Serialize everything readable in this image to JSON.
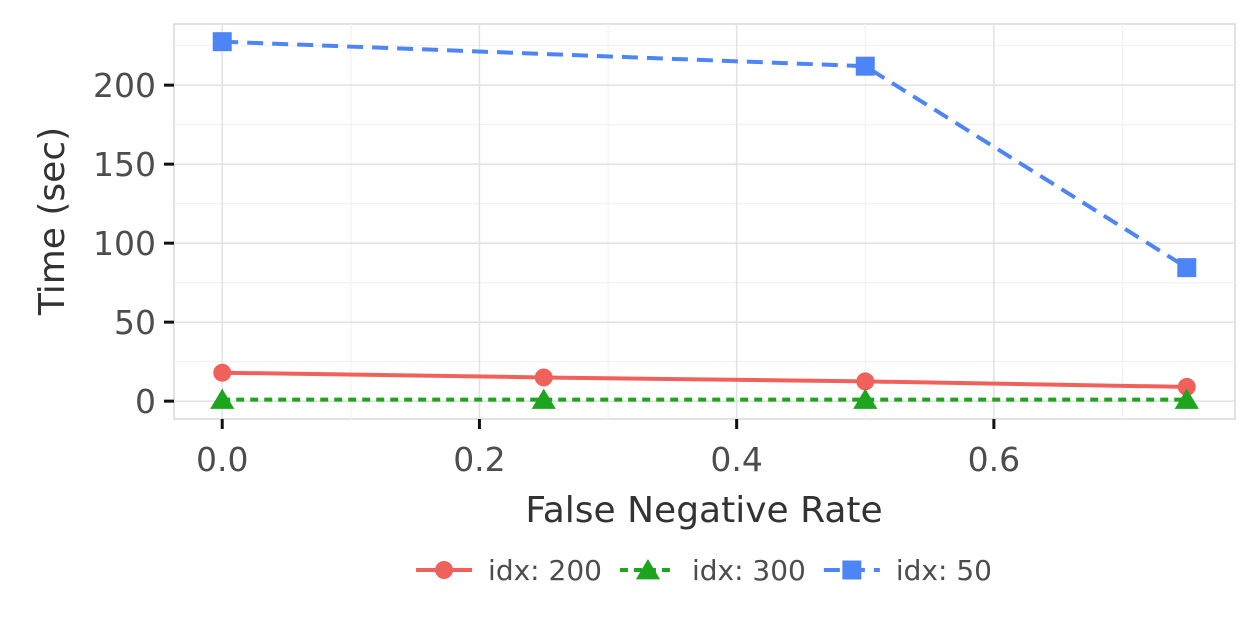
{
  "chart_data": {
    "type": "line",
    "title": "",
    "xlabel": "False Negative Rate",
    "ylabel": "Time (sec)",
    "xlim": [
      -0.0375,
      0.7875
    ],
    "ylim": [
      -11.3,
      238.7
    ],
    "x_ticks": [
      0.0,
      0.2,
      0.4,
      0.6
    ],
    "x_tick_labels": [
      "0.0",
      "0.2",
      "0.4",
      "0.6"
    ],
    "y_ticks": [
      0,
      50,
      100,
      150,
      200
    ],
    "y_tick_labels": [
      "0",
      "50",
      "100",
      "150",
      "200"
    ],
    "grid": true,
    "legend_position": "bottom",
    "series": [
      {
        "name": "idx: 200",
        "x": [
          0.0,
          0.25,
          0.5,
          0.75
        ],
        "values": [
          18,
          15,
          12.5,
          9
        ],
        "color": "#F0615B",
        "marker": "circle",
        "dash": "solid"
      },
      {
        "name": "idx: 300",
        "x": [
          0.0,
          0.25,
          0.5,
          0.75
        ],
        "values": [
          1,
          1,
          1,
          1
        ],
        "color": "#1DA51D",
        "marker": "triangle",
        "dash": "dotted"
      },
      {
        "name": "idx: 50",
        "x": [
          0.0,
          0.25,
          0.5,
          0.75
        ],
        "values": [
          227.5,
          null,
          212,
          84.5
        ],
        "color": "#4D84F6",
        "marker": "square",
        "dash": "dashed"
      }
    ]
  }
}
